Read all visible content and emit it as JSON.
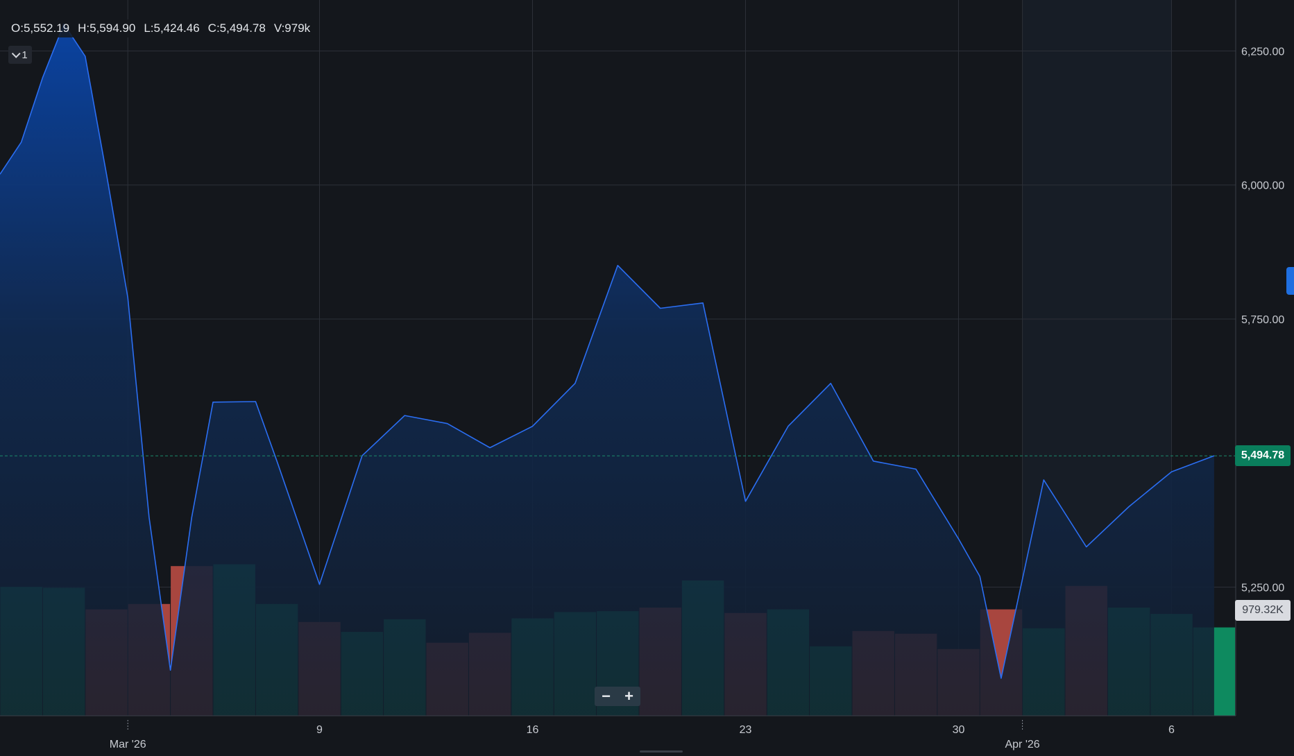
{
  "ohlc": {
    "open": "O:5,552.19",
    "high": "H:5,594.90",
    "low": "L:5,424.46",
    "close": "C:5,494.78",
    "volume": "V:979k"
  },
  "legend_toggle": {
    "label": "1",
    "icon": "chevron-down-icon"
  },
  "zoom": {
    "minus_label": "−",
    "plus_label": "+"
  },
  "colors": {
    "background": "#14171c",
    "line": "#2b6ef2",
    "area_top": "#0a45a8",
    "area_bottom": "#121d2c",
    "volume_up": "#0e8a5f",
    "volume_down": "#a8463f",
    "grid": "#2c3038",
    "last_price_badge": "#0a7e5c",
    "volume_badge": "#d9dbe0"
  },
  "chart_data": {
    "type": "area",
    "x_axis": {
      "ticks": [
        {
          "label": "Mar '26",
          "index": 3
        },
        {
          "label": "9",
          "index": 7.5
        },
        {
          "label": "16",
          "index": 12.5
        },
        {
          "label": "23",
          "index": 17.5
        },
        {
          "label": "30",
          "index": 22.5
        },
        {
          "label": "Apr '26",
          "index": 24
        },
        {
          "label": "6",
          "index": 27.5
        }
      ]
    },
    "y_axis": {
      "ticks": [
        "6,250.00",
        "6,000.00",
        "5,750.00",
        "5,250.00"
      ],
      "tick_values": [
        6250,
        6000,
        5750,
        5250
      ],
      "range": [
        5010,
        6345
      ]
    },
    "price_series": [
      6020,
      6080,
      6200,
      6300,
      6240,
      6020,
      5790,
      5380,
      5095,
      5380,
      5595,
      5596,
      5485,
      5255,
      5495,
      5570,
      5555,
      5510,
      5550,
      5630,
      5850,
      5770,
      5780,
      5410,
      5550,
      5630,
      5485,
      5470,
      5340,
      5270,
      5080,
      5450,
      5325,
      5400,
      5465,
      5495
    ],
    "price_x": [
      0,
      0.5,
      1,
      1.5,
      2,
      2.5,
      3,
      3.5,
      4,
      4.5,
      5,
      6,
      6.5,
      7.5,
      8.5,
      9.5,
      10.5,
      11.5,
      12.5,
      13.5,
      14.5,
      15.5,
      16.5,
      17.5,
      18.5,
      19.5,
      20.5,
      21.5,
      22.5,
      23,
      23.5,
      24.5,
      25.5,
      26.5,
      27.5,
      28.5
    ],
    "last_price": {
      "value": 5494.78,
      "label": "5,494.78"
    },
    "volume": {
      "label": "979.32K",
      "values": [
        1.43,
        1.42,
        1.18,
        1.24,
        1.66,
        1.68,
        1.24,
        1.04,
        0.93,
        1.07,
        0.81,
        0.92,
        1.08,
        1.15,
        1.16,
        1.2,
        1.5,
        1.14,
        1.18,
        0.77,
        0.94,
        0.91,
        0.74,
        1.18,
        0.97,
        1.44,
        1.2,
        1.13,
        0.98
      ],
      "direction": [
        "up",
        "up",
        "down",
        "down",
        "down",
        "up",
        "up",
        "down",
        "up",
        "up",
        "down",
        "down",
        "up",
        "up",
        "up",
        "down",
        "up",
        "down",
        "up",
        "up",
        "down",
        "down",
        "down",
        "down",
        "up",
        "down",
        "up",
        "up",
        "up"
      ]
    }
  }
}
